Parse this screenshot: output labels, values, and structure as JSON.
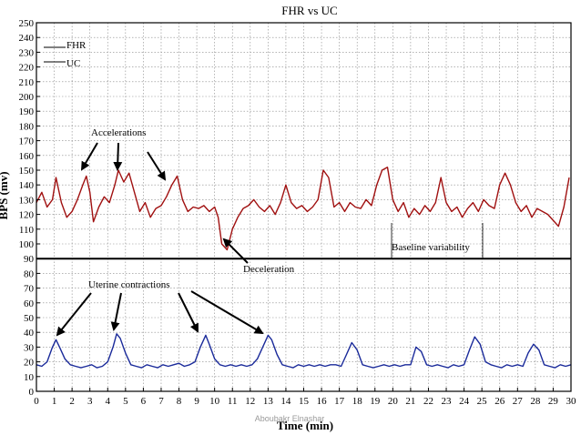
{
  "chart_data": {
    "type": "line",
    "title": "FHR vs UC",
    "xlabel": "Time (min)",
    "ylabel": "BPS (mv)",
    "xlim": [
      0,
      30
    ],
    "ylim": [
      0,
      250
    ],
    "x_ticks": [
      0,
      1,
      2,
      3,
      4,
      5,
      6,
      7,
      8,
      9,
      10,
      11,
      12,
      13,
      14,
      15,
      16,
      17,
      18,
      19,
      20,
      21,
      22,
      23,
      24,
      25,
      26,
      27,
      28,
      29,
      30
    ],
    "y_ticks": [
      0,
      10,
      20,
      30,
      40,
      50,
      60,
      70,
      80,
      90,
      100,
      110,
      120,
      130,
      140,
      150,
      160,
      170,
      180,
      190,
      200,
      210,
      220,
      230,
      240,
      250
    ],
    "grid": true,
    "legend": {
      "position": "top-left",
      "entries": [
        "FHR",
        "UC"
      ]
    },
    "colors": {
      "FHR": "#a01010",
      "UC": "#1a2a9a",
      "reference_line": "#000000"
    },
    "reference_lines": [
      90
    ],
    "series": [
      {
        "name": "FHR",
        "x": [
          0,
          0.3,
          0.6,
          0.9,
          1.1,
          1.4,
          1.7,
          2,
          2.3,
          2.6,
          2.8,
          3,
          3.2,
          3.5,
          3.8,
          4.1,
          4.4,
          4.6,
          4.9,
          5.2,
          5.5,
          5.8,
          6.1,
          6.4,
          6.7,
          7,
          7.3,
          7.6,
          7.9,
          8.2,
          8.5,
          8.8,
          9.1,
          9.4,
          9.7,
          10,
          10.2,
          10.4,
          10.7,
          11,
          11.3,
          11.6,
          11.9,
          12.2,
          12.5,
          12.8,
          13.1,
          13.4,
          13.7,
          14,
          14.3,
          14.6,
          14.9,
          15.2,
          15.5,
          15.8,
          16.1,
          16.4,
          16.7,
          17,
          17.3,
          17.6,
          17.9,
          18.2,
          18.5,
          18.8,
          19.1,
          19.4,
          19.7,
          20,
          20.3,
          20.6,
          20.9,
          21.2,
          21.5,
          21.8,
          22.1,
          22.4,
          22.7,
          23,
          23.3,
          23.6,
          23.9,
          24.2,
          24.5,
          24.8,
          25.1,
          25.4,
          25.7,
          26,
          26.3,
          26.6,
          26.9,
          27.2,
          27.5,
          27.8,
          28.1,
          28.4,
          28.7,
          29,
          29.3,
          29.6,
          29.9
        ],
        "values": [
          128,
          135,
          125,
          130,
          145,
          128,
          118,
          122,
          130,
          140,
          146,
          135,
          115,
          125,
          132,
          128,
          140,
          150,
          142,
          148,
          135,
          122,
          128,
          118,
          124,
          126,
          132,
          140,
          146,
          130,
          122,
          125,
          124,
          126,
          122,
          125,
          118,
          100,
          96,
          110,
          118,
          124,
          126,
          130,
          125,
          122,
          126,
          120,
          128,
          140,
          128,
          124,
          126,
          122,
          125,
          130,
          150,
          145,
          125,
          128,
          122,
          128,
          125,
          124,
          130,
          126,
          140,
          150,
          152,
          130,
          122,
          128,
          118,
          124,
          120,
          126,
          122,
          128,
          145,
          128,
          122,
          125,
          118,
          124,
          128,
          122,
          130,
          126,
          124,
          140,
          148,
          140,
          128,
          122,
          126,
          118,
          124,
          122,
          120,
          116,
          112,
          125,
          145
        ]
      },
      {
        "name": "UC",
        "x": [
          0,
          0.3,
          0.6,
          0.9,
          1.1,
          1.3,
          1.6,
          1.9,
          2.2,
          2.5,
          2.8,
          3.1,
          3.4,
          3.7,
          4,
          4.3,
          4.5,
          4.7,
          5,
          5.3,
          5.6,
          5.9,
          6.2,
          6.5,
          6.8,
          7.1,
          7.4,
          7.7,
          8,
          8.3,
          8.6,
          8.9,
          9.2,
          9.5,
          9.7,
          10,
          10.3,
          10.6,
          10.9,
          11.2,
          11.5,
          11.8,
          12.1,
          12.4,
          12.7,
          13,
          13.2,
          13.5,
          13.8,
          14.1,
          14.4,
          14.7,
          15,
          15.3,
          15.6,
          15.9,
          16.2,
          16.5,
          16.8,
          17.1,
          17.4,
          17.7,
          18,
          18.3,
          18.6,
          18.9,
          19.2,
          19.5,
          19.8,
          20.1,
          20.4,
          20.7,
          21,
          21.3,
          21.6,
          21.9,
          22.2,
          22.5,
          22.8,
          23.1,
          23.4,
          23.7,
          24,
          24.3,
          24.6,
          24.9,
          25.2,
          25.5,
          25.8,
          26.1,
          26.4,
          26.7,
          27,
          27.3,
          27.6,
          27.9,
          28.2,
          28.5,
          28.8,
          29.1,
          29.4,
          29.7,
          30
        ],
        "values": [
          18,
          17,
          20,
          30,
          35,
          30,
          22,
          18,
          17,
          16,
          17,
          18,
          16,
          17,
          20,
          30,
          39,
          36,
          26,
          18,
          17,
          16,
          18,
          17,
          16,
          18,
          17,
          18,
          19,
          17,
          18,
          20,
          30,
          38,
          32,
          22,
          18,
          17,
          18,
          17,
          18,
          17,
          18,
          22,
          30,
          38,
          35,
          25,
          18,
          17,
          16,
          18,
          17,
          18,
          17,
          18,
          17,
          18,
          18,
          17,
          25,
          33,
          28,
          18,
          17,
          16,
          17,
          18,
          17,
          18,
          17,
          18,
          18,
          30,
          27,
          18,
          17,
          18,
          17,
          16,
          18,
          17,
          18,
          28,
          37,
          32,
          20,
          18,
          17,
          16,
          18,
          17,
          18,
          17,
          26,
          32,
          28,
          18,
          17,
          16,
          18,
          17,
          18
        ]
      }
    ],
    "annotations": [
      {
        "text": "Accelerations"
      },
      {
        "text": "Deceleration"
      },
      {
        "text": "Baseline variability"
      },
      {
        "text": "Uterine contractions"
      }
    ],
    "watermark": "Aboubakr Elnashar"
  }
}
